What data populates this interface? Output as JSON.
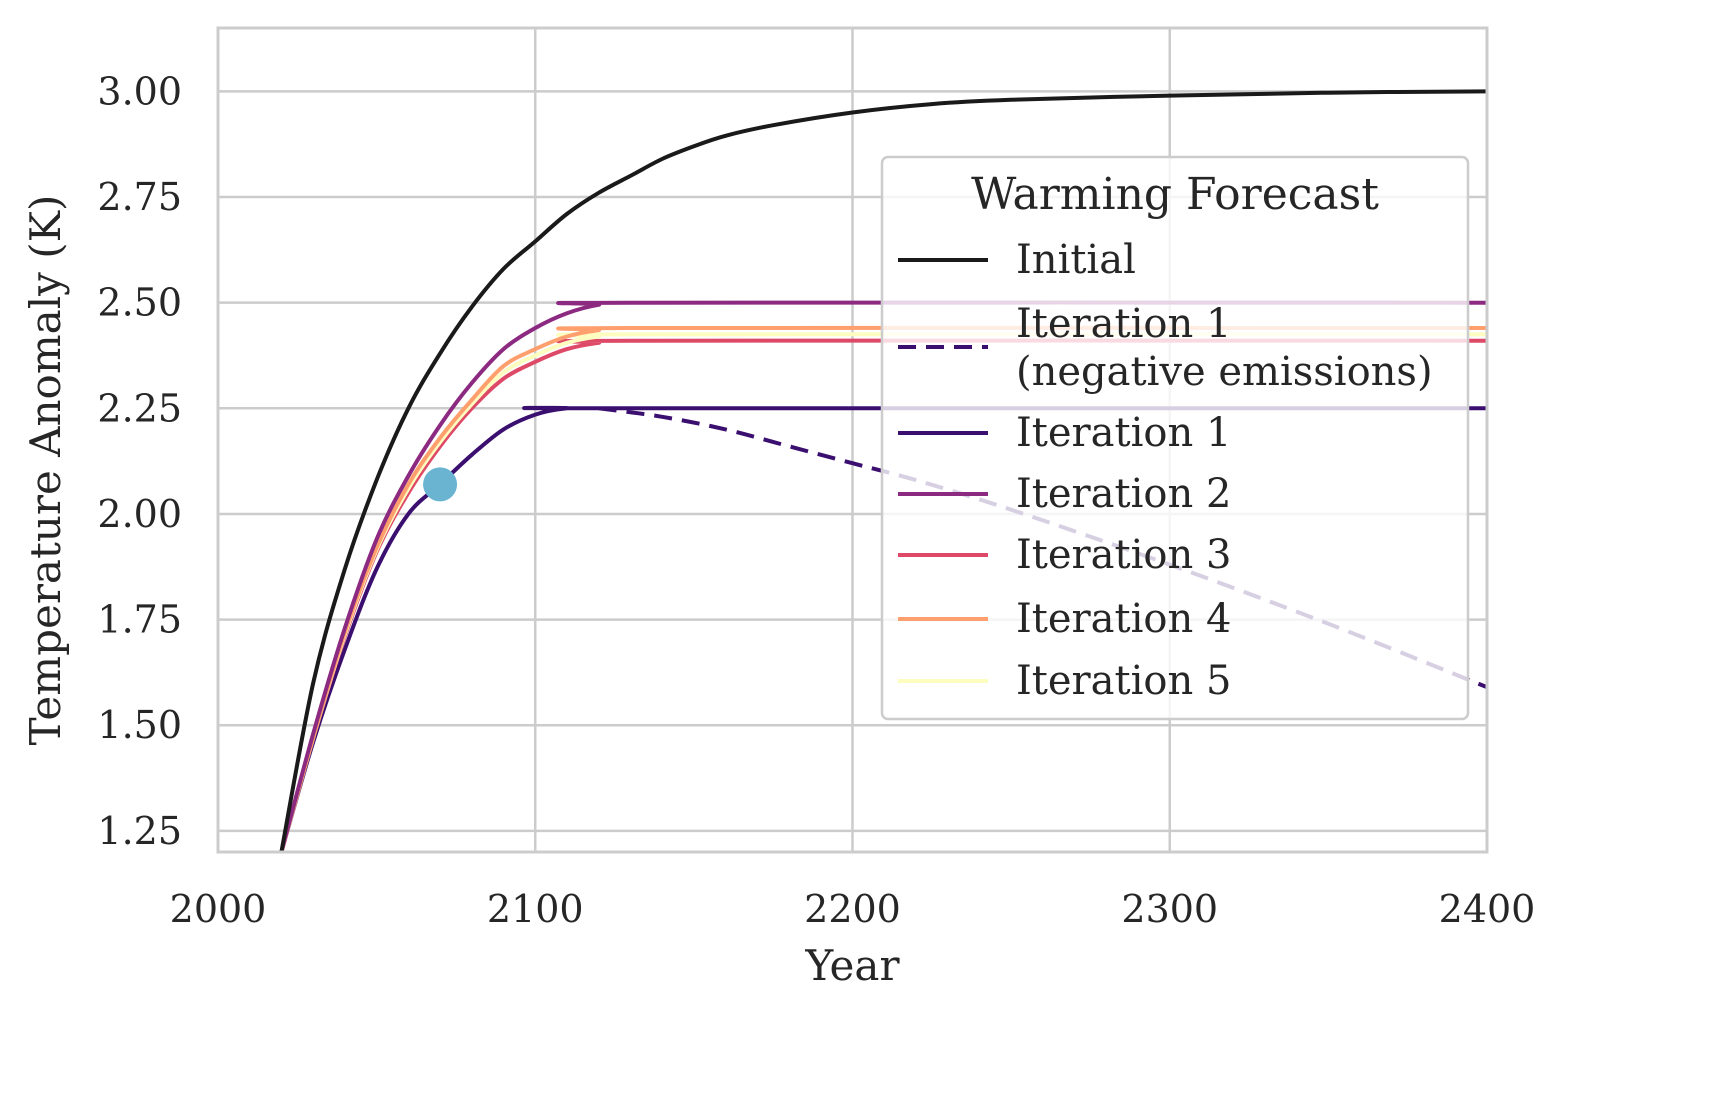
{
  "chart_data": {
    "type": "line",
    "title": "",
    "xlabel": "Year",
    "ylabel": "Temperature Anomaly (K)",
    "xlim": [
      2000,
      2400
    ],
    "ylim": [
      1.2,
      3.15
    ],
    "xticks": [
      2000,
      2100,
      2200,
      2300,
      2400
    ],
    "xtick_labels": [
      "2000",
      "2100",
      "2200",
      "2300",
      "2400"
    ],
    "yticks": [
      1.25,
      1.5,
      1.75,
      2.0,
      2.25,
      2.5,
      2.75,
      3.0
    ],
    "ytick_labels": [
      "1.25",
      "1.50",
      "1.75",
      "2.00",
      "2.25",
      "2.50",
      "2.75",
      "3.00"
    ],
    "grid": true,
    "legend": {
      "title": "Warming Forecast",
      "placement": "center-right",
      "entries": [
        {
          "label": "Initial",
          "series": "initial"
        },
        {
          "label_lines": [
            "Iteration 1",
            "(negative emissions)"
          ],
          "series": "iter1_neg"
        },
        {
          "label": "Iteration 1",
          "series": "iter1"
        },
        {
          "label": "Iteration 2",
          "series": "iter2"
        },
        {
          "label": "Iteration 3",
          "series": "iter3"
        },
        {
          "label": "Iteration 4",
          "series": "iter4"
        },
        {
          "label": "Iteration 5",
          "series": "iter5"
        }
      ]
    },
    "series": [
      {
        "id": "initial",
        "name": "Initial",
        "color": "#1a1a1a",
        "dash": "solid",
        "points": [
          [
            2020,
            1.2
          ],
          [
            2030,
            1.6
          ],
          [
            2040,
            1.87
          ],
          [
            2050,
            2.08
          ],
          [
            2060,
            2.25
          ],
          [
            2070,
            2.38
          ],
          [
            2080,
            2.49
          ],
          [
            2090,
            2.58
          ],
          [
            2100,
            2.645
          ],
          [
            2110,
            2.71
          ],
          [
            2120,
            2.76
          ],
          [
            2130,
            2.8
          ],
          [
            2140,
            2.84
          ],
          [
            2150,
            2.87
          ],
          [
            2160,
            2.895
          ],
          [
            2175,
            2.92
          ],
          [
            2200,
            2.95
          ],
          [
            2225,
            2.97
          ],
          [
            2250,
            2.98
          ],
          [
            2300,
            2.99
          ],
          [
            2350,
            2.997
          ],
          [
            2400,
            3.0
          ]
        ]
      },
      {
        "id": "iter1_neg",
        "name": "Iteration 1 (negative emissions)",
        "color": "#3b0f70",
        "dash": "dashed",
        "points": [
          [
            2120,
            2.25
          ],
          [
            2140,
            2.23
          ],
          [
            2160,
            2.2
          ],
          [
            2180,
            2.16
          ],
          [
            2200,
            2.12
          ],
          [
            2220,
            2.08
          ],
          [
            2250,
            2.01
          ],
          [
            2300,
            1.88
          ],
          [
            2350,
            1.74
          ],
          [
            2400,
            1.59
          ]
        ]
      },
      {
        "id": "iter1",
        "name": "Iteration 1",
        "color": "#3b0f70",
        "dash": "solid",
        "points": [
          [
            2020,
            1.2
          ],
          [
            2030,
            1.46
          ],
          [
            2040,
            1.68
          ],
          [
            2050,
            1.87
          ],
          [
            2060,
            2.0
          ],
          [
            2070,
            2.07
          ],
          [
            2080,
            2.14
          ],
          [
            2090,
            2.2
          ],
          [
            2100,
            2.235
          ],
          [
            2110,
            2.25
          ],
          [
            2120,
            2.25
          ],
          [
            2400,
            2.25
          ]
        ]
      },
      {
        "id": "iter2",
        "name": "Iteration 2",
        "color": "#8c2981",
        "dash": "solid",
        "points": [
          [
            2020,
            1.2
          ],
          [
            2030,
            1.48
          ],
          [
            2040,
            1.73
          ],
          [
            2050,
            1.94
          ],
          [
            2060,
            2.09
          ],
          [
            2070,
            2.21
          ],
          [
            2080,
            2.31
          ],
          [
            2090,
            2.39
          ],
          [
            2100,
            2.44
          ],
          [
            2110,
            2.475
          ],
          [
            2120,
            2.495
          ],
          [
            2130,
            2.5
          ],
          [
            2400,
            2.5
          ]
        ]
      },
      {
        "id": "iter3",
        "name": "Iteration 3",
        "color": "#de4968",
        "dash": "solid",
        "points": [
          [
            2020,
            1.2
          ],
          [
            2030,
            1.47
          ],
          [
            2040,
            1.71
          ],
          [
            2050,
            1.91
          ],
          [
            2060,
            2.05
          ],
          [
            2070,
            2.16
          ],
          [
            2080,
            2.25
          ],
          [
            2090,
            2.32
          ],
          [
            2100,
            2.36
          ],
          [
            2110,
            2.39
          ],
          [
            2120,
            2.405
          ],
          [
            2130,
            2.41
          ],
          [
            2400,
            2.41
          ]
        ]
      },
      {
        "id": "iter4",
        "name": "Iteration 4",
        "color": "#fe9f6d",
        "dash": "solid",
        "points": [
          [
            2020,
            1.2
          ],
          [
            2030,
            1.47
          ],
          [
            2040,
            1.72
          ],
          [
            2050,
            1.92
          ],
          [
            2060,
            2.07
          ],
          [
            2070,
            2.18
          ],
          [
            2080,
            2.27
          ],
          [
            2090,
            2.35
          ],
          [
            2100,
            2.39
          ],
          [
            2110,
            2.42
          ],
          [
            2120,
            2.435
          ],
          [
            2130,
            2.44
          ],
          [
            2400,
            2.44
          ]
        ]
      },
      {
        "id": "iter5",
        "name": "Iteration 5",
        "color": "#fcfdbf",
        "dash": "solid",
        "points": [
          [
            2020,
            1.2
          ],
          [
            2030,
            1.47
          ],
          [
            2040,
            1.715
          ],
          [
            2050,
            1.915
          ],
          [
            2060,
            2.06
          ],
          [
            2070,
            2.17
          ],
          [
            2080,
            2.26
          ],
          [
            2090,
            2.335
          ],
          [
            2100,
            2.375
          ],
          [
            2110,
            2.405
          ],
          [
            2120,
            2.42
          ],
          [
            2130,
            2.425
          ],
          [
            2400,
            2.425
          ]
        ]
      }
    ],
    "markers": [
      {
        "x": 2070,
        "y": 2.07,
        "color": "#6ab4d2"
      }
    ]
  }
}
